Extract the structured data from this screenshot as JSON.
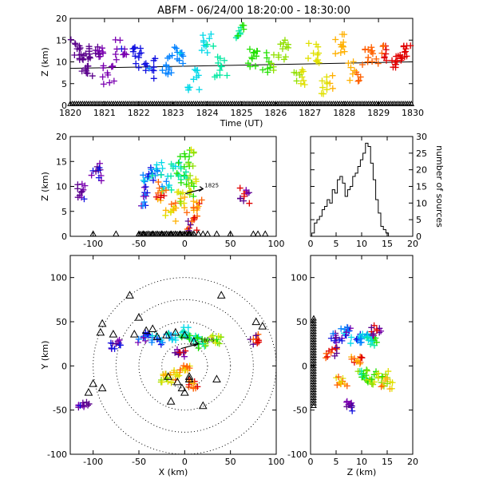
{
  "title": "ABFM - 06/24/00 18:20:00 - 18:30:00",
  "colors": {
    "axis": "#000000",
    "marker": "#000000",
    "ring": "#000000",
    "palette": [
      "#5a008c",
      "#7a00b0",
      "#1010e0",
      "#0080ff",
      "#00d8e8",
      "#00e8a0",
      "#20e000",
      "#90e000",
      "#e0e000",
      "#ffb000",
      "#ff6000",
      "#e00000"
    ]
  },
  "chart_data": [
    {
      "id": "time-height",
      "type": "scatter",
      "xlabel": "Time (UT)",
      "ylabel": "Z (km)",
      "xlim": [
        1820,
        1830
      ],
      "ylim": [
        0,
        20
      ],
      "xticks": [
        "1820",
        "1821",
        "1822",
        "1823",
        "1824",
        "1825",
        "1826",
        "1827",
        "1828",
        "1829",
        "1830"
      ],
      "yticks": [
        "0",
        "5",
        "10",
        "15",
        "20"
      ],
      "marker": "cross",
      "color_by": "time",
      "sample_points": [
        {
          "x": 1820.2,
          "y": 13
        },
        {
          "x": 1820.4,
          "y": 11.5
        },
        {
          "x": 1820.5,
          "y": 9
        },
        {
          "x": 1820.8,
          "y": 12.5
        },
        {
          "x": 1821.1,
          "y": 7
        },
        {
          "x": 1821.5,
          "y": 13
        },
        {
          "x": 1822.0,
          "y": 11
        },
        {
          "x": 1822.3,
          "y": 8.5
        },
        {
          "x": 1822.8,
          "y": 9
        },
        {
          "x": 1823.2,
          "y": 12
        },
        {
          "x": 1823.6,
          "y": 6
        },
        {
          "x": 1824.0,
          "y": 14
        },
        {
          "x": 1824.4,
          "y": 9
        },
        {
          "x": 1824.9,
          "y": 16
        },
        {
          "x": 1825.3,
          "y": 11
        },
        {
          "x": 1825.8,
          "y": 10
        },
        {
          "x": 1826.2,
          "y": 13
        },
        {
          "x": 1826.7,
          "y": 7
        },
        {
          "x": 1827.1,
          "y": 12
        },
        {
          "x": 1827.5,
          "y": 5
        },
        {
          "x": 1827.9,
          "y": 14
        },
        {
          "x": 1828.3,
          "y": 8
        },
        {
          "x": 1828.7,
          "y": 11
        },
        {
          "x": 1829.1,
          "y": 12
        },
        {
          "x": 1829.5,
          "y": 10
        },
        {
          "x": 1829.8,
          "y": 13
        }
      ],
      "fit_line": {
        "x": [
          1820,
          1830
        ],
        "y": [
          8.5,
          10
        ]
      },
      "ground_markers": {
        "marker": "triangle",
        "y": 0
      }
    },
    {
      "id": "x-height",
      "type": "scatter",
      "xlabel": "",
      "ylabel": "Z (km)",
      "xlim": [
        -125,
        100
      ],
      "ylim": [
        0,
        20
      ],
      "xticks": [
        "-100",
        "-50",
        "0",
        "50",
        "100"
      ],
      "yticks": [
        "0",
        "5",
        "10",
        "15",
        "20"
      ],
      "marker": "cross",
      "annotation": "1825",
      "sample_points": [
        {
          "x": -112,
          "y": 9
        },
        {
          "x": -97,
          "y": 13
        },
        {
          "x": -45,
          "y": 8
        },
        {
          "x": -40,
          "y": 12
        },
        {
          "x": -30,
          "y": 13
        },
        {
          "x": -20,
          "y": 11
        },
        {
          "x": -10,
          "y": 14
        },
        {
          "x": 0,
          "y": 12
        },
        {
          "x": 5,
          "y": 16
        },
        {
          "x": 10,
          "y": 10
        },
        {
          "x": -5,
          "y": 7
        },
        {
          "x": -15,
          "y": 5
        },
        {
          "x": 15,
          "y": 6
        },
        {
          "x": -25,
          "y": 9
        },
        {
          "x": 8,
          "y": 3
        },
        {
          "x": 65,
          "y": 8
        }
      ],
      "ground_markers": {
        "marker": "triangle",
        "y": 0,
        "x": [
          -100,
          -75,
          -50,
          -45,
          -40,
          -35,
          -30,
          -25,
          -20,
          -15,
          -10,
          -5,
          0,
          5,
          10,
          15,
          20,
          25,
          35,
          50,
          75,
          80,
          88
        ]
      }
    },
    {
      "id": "height-histogram",
      "type": "bar",
      "xlabel": "",
      "ylabel": "number of sources",
      "xlim": [
        0,
        20
      ],
      "ylim": [
        0,
        30
      ],
      "xticks": [
        "0",
        "5",
        "10",
        "15",
        "20"
      ],
      "yticks": [
        "0",
        "5",
        "10",
        "15",
        "20",
        "25",
        "30"
      ],
      "bin_width": 0.5,
      "x": [
        0.5,
        1,
        1.5,
        2,
        2.5,
        3,
        3.5,
        4,
        4.5,
        5,
        5.5,
        6,
        6.5,
        7,
        7.5,
        8,
        8.5,
        9,
        9.5,
        10,
        10.5,
        11,
        11.5,
        12,
        12.5,
        13,
        13.5,
        14,
        14.5,
        15,
        15.5
      ],
      "values": [
        1,
        4,
        5,
        6,
        8,
        9,
        11,
        10,
        14,
        13,
        17,
        18,
        16,
        12,
        14,
        15,
        18,
        19,
        21,
        23,
        25,
        28,
        27,
        22,
        17,
        11,
        7,
        3,
        2,
        1,
        0
      ]
    },
    {
      "id": "plan-view",
      "type": "scatter",
      "xlabel": "X (km)",
      "ylabel": "Y (km)",
      "xlim": [
        -125,
        100
      ],
      "ylim": [
        -100,
        125
      ],
      "xticks": [
        "-100",
        "-50",
        "0",
        "50",
        "100"
      ],
      "yticks": [
        "-100",
        "-50",
        "0",
        "50",
        "100"
      ],
      "marker": "cross",
      "annotation": "1825",
      "rings_km": [
        25,
        50,
        75,
        100
      ],
      "sample_points": [
        {
          "x": -110,
          "y": -45
        },
        {
          "x": -75,
          "y": 25
        },
        {
          "x": -45,
          "y": 32
        },
        {
          "x": -30,
          "y": 30
        },
        {
          "x": -15,
          "y": 35
        },
        {
          "x": 0,
          "y": 38
        },
        {
          "x": 10,
          "y": 30
        },
        {
          "x": 20,
          "y": 25
        },
        {
          "x": 35,
          "y": 30
        },
        {
          "x": -20,
          "y": -15
        },
        {
          "x": -10,
          "y": -10
        },
        {
          "x": 0,
          "y": -5
        },
        {
          "x": 10,
          "y": -20
        },
        {
          "x": 75,
          "y": 30
        },
        {
          "x": -5,
          "y": 15
        }
      ],
      "stations": [
        [
          -90,
          48
        ],
        [
          -92,
          38
        ],
        [
          -78,
          36
        ],
        [
          -100,
          -20
        ],
        [
          -105,
          -30
        ],
        [
          -90,
          -25
        ],
        [
          -55,
          36
        ],
        [
          -42,
          40
        ],
        [
          -35,
          42
        ],
        [
          -30,
          33
        ],
        [
          -20,
          35
        ],
        [
          -10,
          38
        ],
        [
          0,
          35
        ],
        [
          10,
          28
        ],
        [
          -18,
          -12
        ],
        [
          -8,
          -18
        ],
        [
          -3,
          -25
        ],
        [
          5,
          -15
        ],
        [
          0,
          -30
        ],
        [
          -15,
          -40
        ],
        [
          20,
          -45
        ],
        [
          35,
          -15
        ],
        [
          40,
          80
        ],
        [
          -50,
          55
        ],
        [
          78,
          50
        ],
        [
          85,
          45
        ],
        [
          5,
          -12
        ],
        [
          -60,
          80
        ]
      ]
    },
    {
      "id": "z-y",
      "type": "scatter",
      "xlabel": "Z (km)",
      "ylabel": "",
      "xlim": [
        0,
        20
      ],
      "ylim": [
        -100,
        125
      ],
      "xticks": [
        "0",
        "5",
        "10",
        "15",
        "20"
      ],
      "yticks": [
        "-100",
        "-50",
        "0",
        "50",
        "100"
      ],
      "marker": "cross",
      "sample_points": [
        {
          "x": 8,
          "y": -45
        },
        {
          "x": 5,
          "y": 32
        },
        {
          "x": 7,
          "y": 38
        },
        {
          "x": 9,
          "y": 30
        },
        {
          "x": 11,
          "y": 35
        },
        {
          "x": 12,
          "y": 28
        },
        {
          "x": 10,
          "y": -10
        },
        {
          "x": 12,
          "y": -15
        },
        {
          "x": 14,
          "y": -12
        },
        {
          "x": 15,
          "y": -20
        },
        {
          "x": 6,
          "y": -18
        },
        {
          "x": 9,
          "y": 5
        },
        {
          "x": 4,
          "y": 15
        },
        {
          "x": 13,
          "y": 40
        }
      ],
      "ground_markers": {
        "marker": "triangle",
        "x": 0
      }
    }
  ]
}
